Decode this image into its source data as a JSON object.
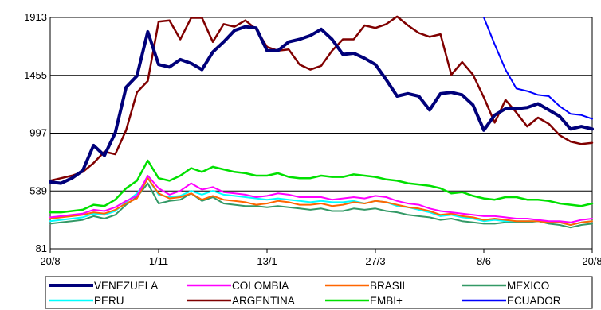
{
  "chart_data": {
    "type": "line",
    "title": "",
    "xlabel": "",
    "ylabel": "",
    "x_tick_labels": [
      "20/8",
      "1/11",
      "13/1",
      "27/3",
      "8/6",
      "20/8"
    ],
    "y_tick_labels": [
      "81",
      "539",
      "997",
      "1455",
      "1913"
    ],
    "ylim": [
      81,
      1913
    ],
    "grid": "horizontal",
    "legend_position": "bottom",
    "series": [
      {
        "name": "VENEZUELA",
        "color": "#00007A",
        "width": 4,
        "values": [
          610,
          600,
          640,
          700,
          900,
          820,
          1000,
          1360,
          1450,
          1800,
          1540,
          1520,
          1580,
          1550,
          1500,
          1640,
          1720,
          1810,
          1840,
          1830,
          1650,
          1650,
          1720,
          1740,
          1770,
          1820,
          1740,
          1620,
          1630,
          1590,
          1540,
          1420,
          1290,
          1310,
          1290,
          1180,
          1310,
          1320,
          1300,
          1220,
          1020,
          1140,
          1190,
          1190,
          1200,
          1230,
          1180,
          1130,
          1030,
          1050,
          1030
        ]
      },
      {
        "name": "COLOMBIA",
        "color": "#FF00FF",
        "width": 2,
        "values": [
          330,
          340,
          350,
          360,
          390,
          380,
          410,
          460,
          500,
          660,
          560,
          510,
          540,
          600,
          550,
          570,
          530,
          520,
          510,
          490,
          500,
          520,
          510,
          490,
          490,
          490,
          470,
          480,
          490,
          480,
          500,
          490,
          460,
          440,
          430,
          400,
          380,
          370,
          360,
          350,
          340,
          340,
          330,
          320,
          320,
          310,
          300,
          300,
          290,
          310,
          320
        ]
      },
      {
        "name": "BRASIL",
        "color": "#FF6600",
        "width": 2,
        "values": [
          320,
          330,
          340,
          350,
          370,
          360,
          390,
          440,
          480,
          640,
          520,
          480,
          490,
          520,
          470,
          500,
          470,
          460,
          450,
          430,
          440,
          460,
          450,
          430,
          430,
          440,
          420,
          430,
          450,
          440,
          460,
          450,
          430,
          410,
          400,
          380,
          350,
          360,
          340,
          330,
          310,
          320,
          310,
          300,
          300,
          300,
          290,
          290,
          270,
          290,
          300
        ]
      },
      {
        "name": "MEXICO",
        "color": "#339966",
        "width": 2,
        "values": [
          280,
          290,
          300,
          310,
          340,
          320,
          350,
          430,
          490,
          600,
          440,
          460,
          470,
          520,
          460,
          490,
          440,
          430,
          420,
          420,
          410,
          420,
          410,
          400,
          390,
          400,
          380,
          380,
          400,
          390,
          400,
          380,
          370,
          350,
          340,
          330,
          310,
          320,
          300,
          290,
          280,
          280,
          290,
          290,
          290,
          300,
          280,
          270,
          250,
          270,
          280
        ]
      },
      {
        "name": "PERU",
        "color": "#00FFFF",
        "width": 2,
        "values": [
          300,
          310,
          320,
          330,
          360,
          350,
          380,
          450,
          520,
          640,
          510,
          490,
          500,
          540,
          510,
          540,
          510,
          500,
          490,
          480,
          470,
          480,
          470,
          460,
          450,
          460,
          450,
          450,
          460,
          440,
          460,
          450,
          420,
          410,
          390,
          370,
          340,
          350,
          330,
          320,
          300,
          310,
          300,
          300,
          300,
          300,
          290,
          290,
          270,
          290,
          300
        ]
      },
      {
        "name": "ARGENTINA",
        "color": "#800000",
        "width": 2.5,
        "values": [
          620,
          640,
          660,
          690,
          760,
          850,
          830,
          1020,
          1320,
          1410,
          1880,
          1890,
          1740,
          1910,
          1910,
          1720,
          1860,
          1840,
          1890,
          1820,
          1680,
          1650,
          1660,
          1540,
          1500,
          1530,
          1650,
          1740,
          1740,
          1850,
          1830,
          1860,
          1920,
          1850,
          1790,
          1760,
          1780,
          1460,
          1560,
          1460,
          1280,
          1080,
          1260,
          1160,
          1050,
          1120,
          1070,
          980,
          930,
          910,
          920
        ]
      },
      {
        "name": "EMBI+",
        "color": "#00E000",
        "width": 2.5,
        "values": [
          370,
          370,
          380,
          390,
          430,
          420,
          470,
          560,
          620,
          780,
          640,
          620,
          660,
          720,
          690,
          730,
          710,
          690,
          680,
          660,
          660,
          680,
          650,
          640,
          640,
          660,
          650,
          650,
          670,
          660,
          650,
          630,
          620,
          600,
          590,
          580,
          560,
          520,
          530,
          500,
          480,
          470,
          490,
          490,
          470,
          470,
          460,
          440,
          430,
          420,
          440
        ]
      },
      {
        "name": "ECUADOR",
        "color": "#0000FF",
        "width": 2,
        "values": [
          null,
          null,
          null,
          null,
          null,
          null,
          null,
          null,
          null,
          null,
          null,
          null,
          null,
          null,
          null,
          null,
          null,
          null,
          null,
          null,
          null,
          null,
          null,
          null,
          null,
          null,
          null,
          null,
          null,
          null,
          null,
          null,
          null,
          null,
          null,
          null,
          null,
          null,
          null,
          null,
          1913,
          1700,
          1500,
          1350,
          1330,
          1300,
          1290,
          1210,
          1150,
          1140,
          1110
        ]
      }
    ]
  }
}
